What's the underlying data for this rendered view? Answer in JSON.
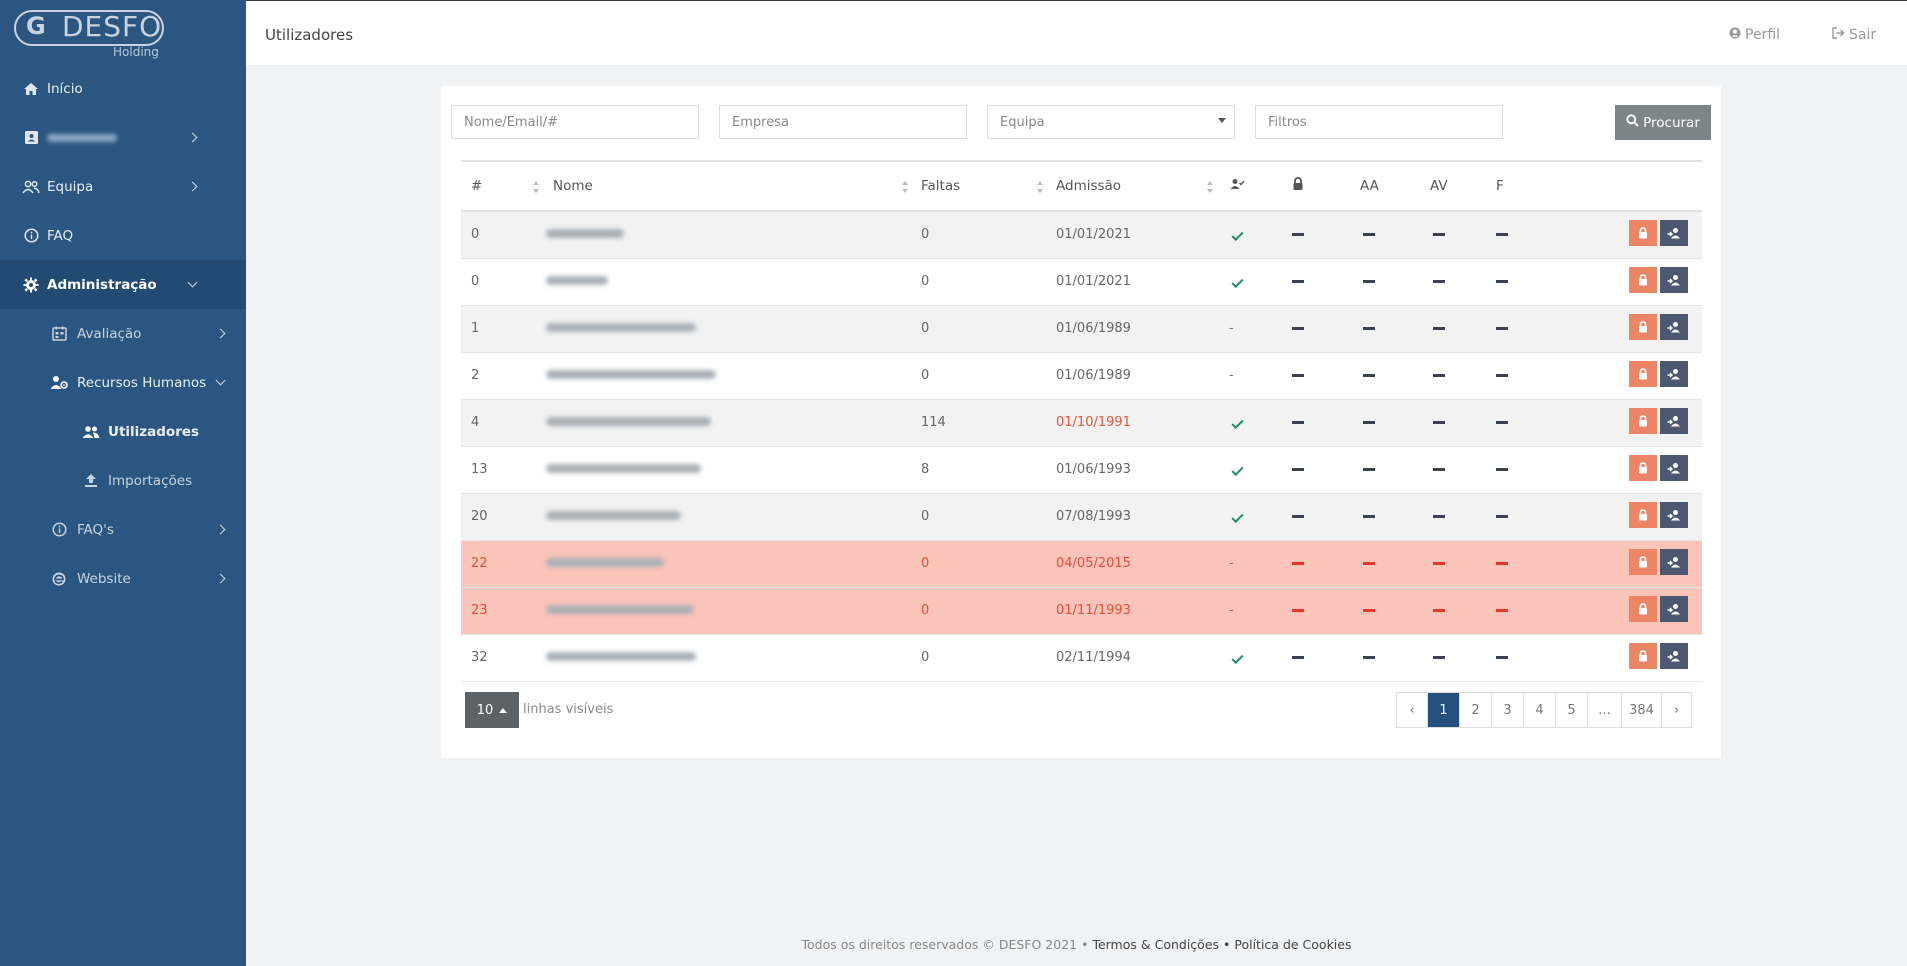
{
  "brand": {
    "name": "DESFO",
    "sub": "Holding"
  },
  "sidebar": {
    "items": [
      {
        "label": "Início",
        "icon": "home-icon"
      },
      {
        "label": "",
        "icon": "id-card-icon",
        "hidden_label": true
      },
      {
        "label": "Equipa",
        "icon": "users-icon"
      },
      {
        "label": "FAQ",
        "icon": "info-icon"
      },
      {
        "label": "Administração",
        "icon": "gear-icon"
      },
      {
        "label": "Avaliação",
        "icon": "calendar-icon"
      },
      {
        "label": "Recursos Humanos",
        "icon": "user-gear-icon"
      },
      {
        "label": "Utilizadores",
        "icon": "users-icon"
      },
      {
        "label": "Importações",
        "icon": "upload-icon"
      },
      {
        "label": "FAQ's",
        "icon": "info-icon"
      },
      {
        "label": "Website",
        "icon": "browser-icon"
      }
    ]
  },
  "header": {
    "title": "Utilizadores",
    "profile": "Perfil",
    "logout": "Sair"
  },
  "filters": {
    "name_placeholder": "Nome/Email/#",
    "company_placeholder": "Empresa",
    "team_placeholder": "Equipa",
    "filters_placeholder": "Filtros",
    "search_label": "Procurar"
  },
  "table": {
    "headers": [
      "#",
      "Nome",
      "Faltas",
      "Admissão",
      "",
      "",
      "AA",
      "AV",
      "F"
    ],
    "rows": [
      {
        "id": "0",
        "faltas": "0",
        "admissao": "01/01/2021",
        "active": true,
        "warn": false,
        "date_red": false
      },
      {
        "id": "0",
        "faltas": "0",
        "admissao": "01/01/2021",
        "active": true,
        "warn": false,
        "date_red": false
      },
      {
        "id": "1",
        "faltas": "0",
        "admissao": "01/06/1989",
        "active": false,
        "warn": false,
        "date_red": false
      },
      {
        "id": "2",
        "faltas": "0",
        "admissao": "01/06/1989",
        "active": false,
        "warn": false,
        "date_red": false
      },
      {
        "id": "4",
        "faltas": "114",
        "admissao": "01/10/1991",
        "active": true,
        "warn": false,
        "date_red": true
      },
      {
        "id": "13",
        "faltas": "8",
        "admissao": "01/06/1993",
        "active": true,
        "warn": false,
        "date_red": false
      },
      {
        "id": "20",
        "faltas": "0",
        "admissao": "07/08/1993",
        "active": true,
        "warn": false,
        "date_red": false
      },
      {
        "id": "22",
        "faltas": "0",
        "admissao": "04/05/2015",
        "active": false,
        "warn": true,
        "date_red": true
      },
      {
        "id": "23",
        "faltas": "0",
        "admissao": "01/11/1993",
        "active": false,
        "warn": true,
        "date_red": true
      },
      {
        "id": "32",
        "faltas": "0",
        "admissao": "02/11/1994",
        "active": true,
        "warn": false,
        "date_red": false
      }
    ],
    "inactive_mark": "-"
  },
  "pagination": {
    "rows_per_page": "10",
    "rows_label": "linhas visíveis",
    "prev": "‹",
    "pages": [
      "1",
      "2",
      "3",
      "4",
      "5",
      "...",
      "384"
    ],
    "next": "›",
    "current": "1"
  },
  "footer": {
    "text": "Todos os direitos reservados © DESFO 2021 •",
    "terms": "Termos & Condições",
    "sep": "•",
    "cookies": "Política de Cookies"
  },
  "colors": {
    "sidebar": "#2b5681",
    "warn_row": "#fbc4b8",
    "lock_btn": "#ec8465",
    "user_btn": "#4c5870",
    "check": "#1c8a6b"
  }
}
